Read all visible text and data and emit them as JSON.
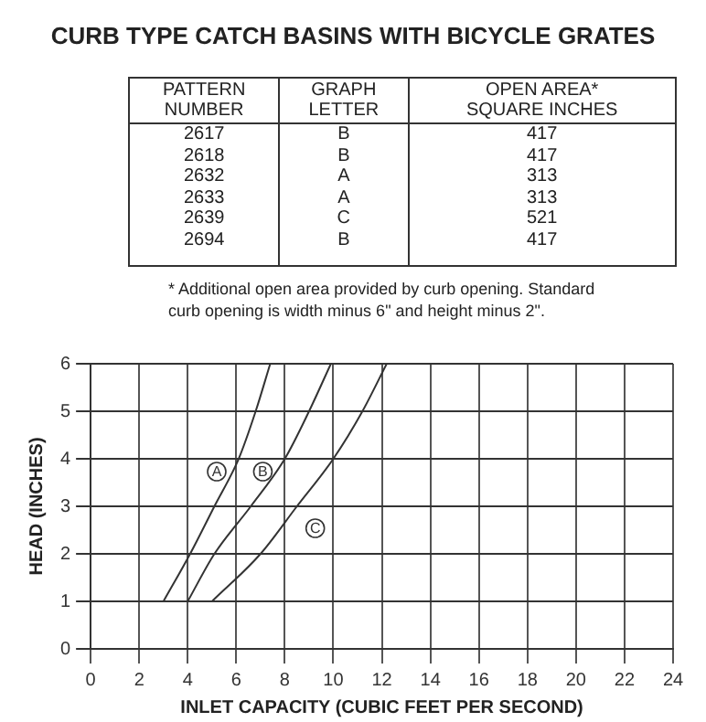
{
  "chart_data": {
    "type": "line",
    "title": "CURB TYPE CATCH BASINS WITH BICYCLE GRATES",
    "xlabel": "INLET CAPACITY (CUBIC FEET PER SECOND)",
    "ylabel": "HEAD (INCHES)",
    "annotations": [
      "PATTERN\nNUMBER",
      "GRAPH\nLETTER",
      "OPEN AREA*\nSQUARE INCHES",
      "2617",
      "B",
      "417",
      "2618",
      "B",
      "417",
      "2632",
      "A",
      "313",
      "2633",
      "A",
      "313",
      "2639",
      "C",
      "521",
      "2694",
      "B",
      "417",
      "* Additional open area provided by curb opening. Standard curb opening is width minus 6\" and height minus 2\"."
    ],
    "series": [
      {
        "name": "A",
        "color": "#333333",
        "x": [
          3,
          4.1,
          5.1,
          6.1,
          6.8,
          7.4
        ],
        "values": [
          1,
          2,
          3,
          4,
          5,
          6
        ]
      },
      {
        "name": "B",
        "color": "#333333",
        "x": [
          4,
          5.1,
          6.6,
          8,
          9,
          9.9
        ],
        "values": [
          1,
          2,
          3,
          4,
          5,
          6
        ]
      },
      {
        "name": "C",
        "color": "#333333",
        "x": [
          5,
          7,
          8.5,
          10,
          11.2,
          12.2
        ],
        "values": [
          1,
          2,
          3,
          4,
          5,
          6
        ]
      }
    ],
    "xlim": [
      0,
      24
    ],
    "ylim": [
      0,
      6
    ],
    "xticks": [
      0,
      2,
      4,
      6,
      8,
      10,
      12,
      14,
      16,
      18,
      20,
      22,
      24
    ],
    "yticks": [
      0,
      1,
      2,
      3,
      4,
      5,
      6
    ],
    "grid": true,
    "marker": "none",
    "line_style": "solid"
  }
}
